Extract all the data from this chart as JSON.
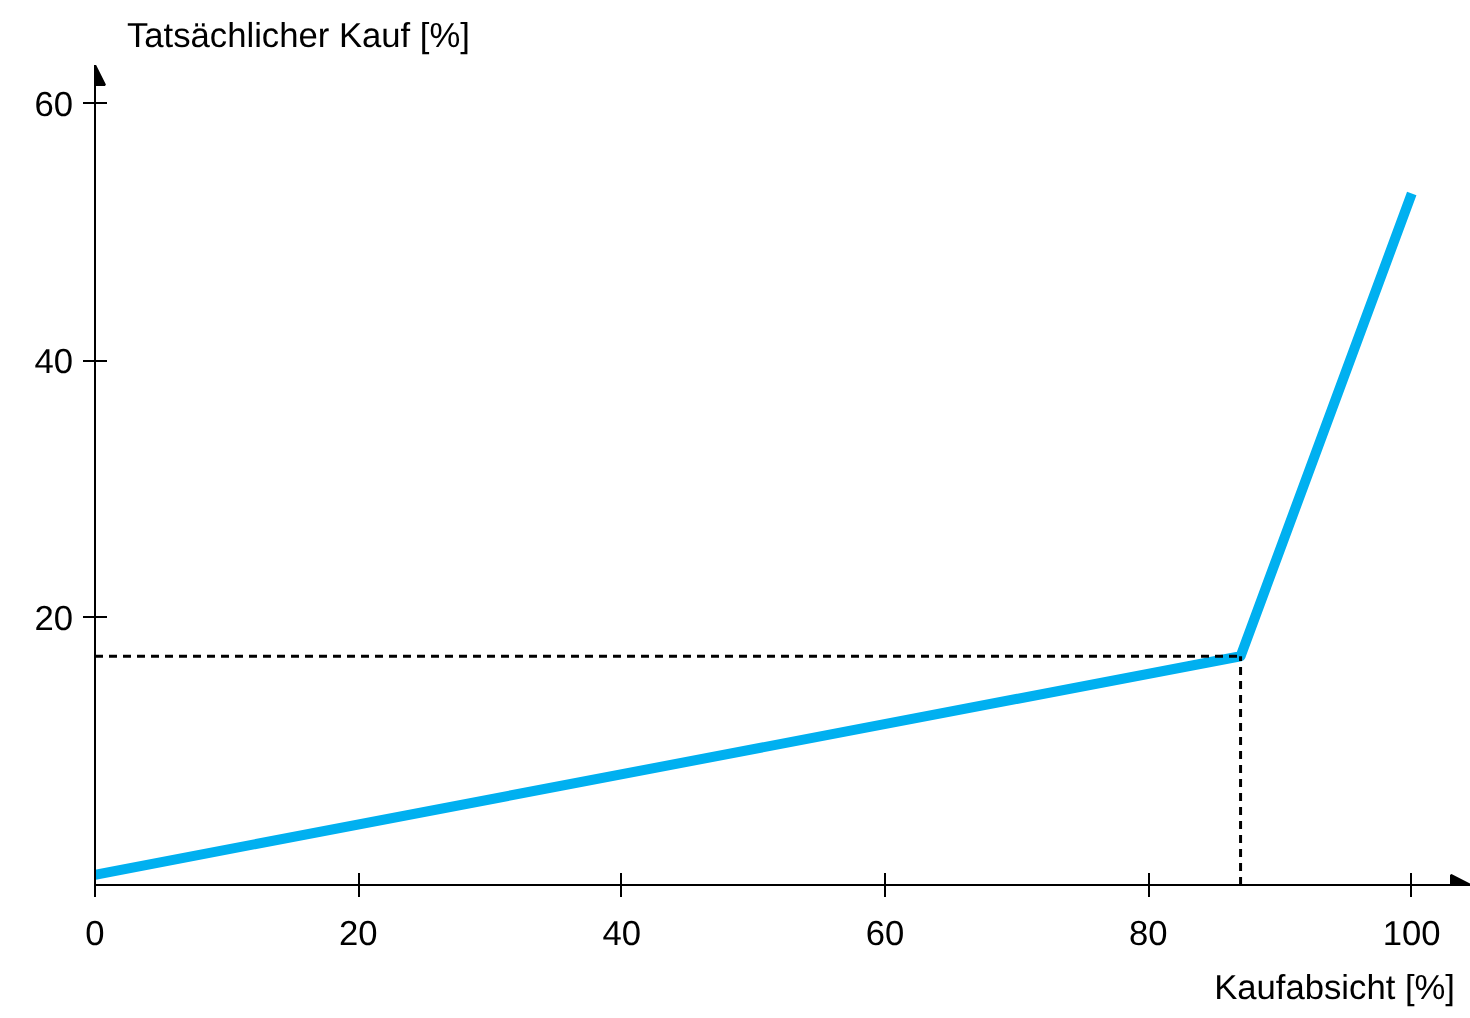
{
  "chart_data": {
    "type": "line",
    "xlabel": "Kaufabsicht [%]",
    "ylabel": "Tatsächlicher Kauf [%]",
    "x": [
      0,
      87,
      100
    ],
    "series": [
      {
        "color": "#00b0f0",
        "values": [
          0,
          17,
          53
        ]
      }
    ],
    "xlim": [
      0,
      104.5
    ],
    "ylim": [
      -0.8,
      63
    ],
    "xticks": [
      0,
      20,
      40,
      60,
      80,
      100
    ],
    "yticks": [
      20,
      40,
      60
    ],
    "ref_lines": [
      {
        "axis": "x",
        "value": 87,
        "color": "#000000",
        "line_style": "dashed"
      },
      {
        "axis": "y",
        "value": 17,
        "color": "#000000",
        "line_style": "dashed"
      }
    ],
    "grid": false,
    "marker": "none",
    "line_style": "solid"
  }
}
